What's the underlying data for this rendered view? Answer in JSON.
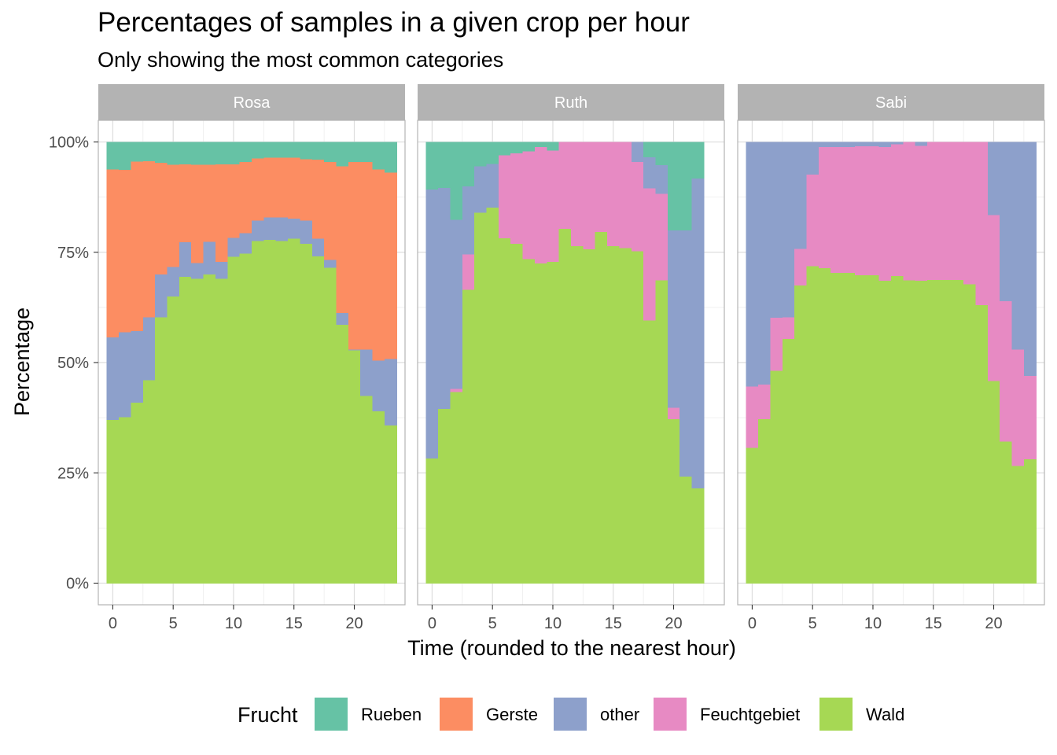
{
  "chart_data": {
    "type": "bar",
    "stacked": true,
    "title": "Percentages of samples in a given crop per hour",
    "subtitle": "Only showing the most common categories",
    "xlabel": "Time (rounded to the nearest hour)",
    "ylabel": "Percentage",
    "x_ticks": [
      0,
      5,
      10,
      15,
      20
    ],
    "y_ticks": [
      0,
      25,
      50,
      75,
      100
    ],
    "y_tick_labels": [
      "0%",
      "25%",
      "50%",
      "75%",
      "100%"
    ],
    "ylim": [
      0,
      100
    ],
    "grid": true,
    "legend": {
      "title": "Frucht",
      "position": "bottom",
      "entries": [
        {
          "name": "Rueben",
          "color": "#66c2a5"
        },
        {
          "name": "Gerste",
          "color": "#fc8d62"
        },
        {
          "name": "other",
          "color": "#8da0cb"
        },
        {
          "name": "Feuchtgebiet",
          "color": "#e78ac3"
        },
        {
          "name": "Wald",
          "color": "#a6d854"
        }
      ]
    },
    "stack_order_bottom_to_top": [
      "Wald",
      "Feuchtgebiet",
      "other",
      "Gerste",
      "Rueben"
    ],
    "hours": [
      0,
      1,
      2,
      3,
      4,
      5,
      6,
      7,
      8,
      9,
      10,
      11,
      12,
      13,
      14,
      15,
      16,
      17,
      18,
      19,
      20,
      21,
      22,
      23
    ],
    "panels": [
      {
        "name": "Rosa",
        "series": {
          "Wald": [
            37,
            37.7,
            41,
            46,
            60.3,
            65,
            69.5,
            69,
            70,
            69,
            74,
            74.7,
            77.6,
            77.9,
            77.6,
            78.1,
            77,
            74.1,
            71.5,
            58.6,
            52.8,
            42.5,
            39,
            35.8
          ],
          "Feuchtgebiet": [
            0,
            0,
            0,
            0,
            0,
            0,
            0,
            0,
            0,
            0,
            0,
            0,
            0,
            0,
            0,
            0,
            0,
            0,
            0,
            0,
            0,
            0,
            0,
            0
          ],
          "other": [
            18.8,
            19.2,
            16.2,
            14.3,
            9.7,
            6.7,
            7.8,
            3.6,
            7.4,
            3.9,
            4.3,
            4.7,
            4.6,
            5,
            5.3,
            4.6,
            5.2,
            4,
            1.8,
            2.7,
            0.2,
            10.5,
            11.5,
            15.1
          ],
          "Gerste": [
            38,
            36.8,
            38.4,
            35.4,
            25.3,
            23.2,
            17.7,
            22.3,
            17.5,
            22.1,
            16.7,
            16.1,
            14.1,
            13.6,
            13.6,
            13.8,
            13.9,
            17.9,
            22.2,
            33.2,
            42.5,
            42.5,
            43.3,
            42.2
          ],
          "Rueben": [
            6.2,
            6.3,
            4.4,
            4.3,
            4.7,
            5.1,
            5,
            5.1,
            5.1,
            5,
            5,
            4.5,
            3.7,
            3.5,
            3.5,
            3.5,
            3.9,
            4,
            4.5,
            5.5,
            4.5,
            4.5,
            6.2,
            6.9
          ]
        }
      },
      {
        "name": "Ruth",
        "series": {
          "Wald": [
            28.3,
            39.5,
            43.4,
            66.5,
            84,
            85.2,
            78.2,
            77,
            73.5,
            72.5,
            72.9,
            80.4,
            76.4,
            75.7,
            79.6,
            76.4,
            76,
            75.3,
            59.6,
            68.7,
            37.2,
            24.2,
            21.5,
            0
          ],
          "Feuchtgebiet": [
            0,
            0,
            0.7,
            8.1,
            0,
            0,
            18.8,
            20.5,
            24.4,
            26.4,
            25.2,
            19.6,
            23.6,
            24.3,
            20.4,
            23.6,
            24,
            20.2,
            29.9,
            19.6,
            2.6,
            0,
            0,
            0
          ],
          "other": [
            61,
            50.1,
            38.3,
            15.4,
            10.5,
            9.9,
            0,
            0,
            0,
            0,
            0,
            0,
            0,
            0,
            0,
            0,
            0,
            4.5,
            7.1,
            6.5,
            40.2,
            55.8,
            70.3,
            0
          ],
          "Gerste": [
            0,
            0,
            0,
            0,
            0,
            0,
            0,
            0,
            0,
            0,
            0,
            0,
            0,
            0,
            0,
            0,
            0,
            0,
            0,
            0,
            0,
            0,
            0,
            0
          ],
          "Rueben": [
            10.7,
            10.4,
            17.6,
            10,
            5.5,
            4.9,
            3,
            2.5,
            2.1,
            1.1,
            1.9,
            0,
            0,
            0,
            0,
            0,
            0,
            0,
            3.4,
            5.2,
            20,
            20,
            8.2,
            0
          ]
        }
      },
      {
        "name": "Sabi",
        "series": {
          "Wald": [
            30.7,
            37.2,
            48.2,
            55.4,
            67.5,
            71.9,
            71.4,
            70.4,
            70.4,
            69.8,
            69.8,
            68.6,
            69.7,
            68.7,
            68.6,
            68.8,
            68.8,
            68.8,
            67.8,
            63.1,
            45.9,
            32.1,
            26.6,
            28.1
          ],
          "Feuchtgebiet": [
            13.9,
            7.9,
            12,
            4.9,
            8.3,
            20.8,
            27.5,
            28.5,
            28.5,
            29.3,
            29.3,
            30.3,
            29.8,
            31.3,
            30.6,
            31.2,
            31.2,
            31.2,
            32.2,
            36.9,
            37.6,
            31.9,
            26.4,
            18.9
          ],
          "other": [
            55.4,
            54.9,
            39.8,
            39.7,
            24.2,
            7.3,
            1.1,
            1.1,
            1.1,
            0.9,
            0.9,
            1.1,
            0.5,
            0,
            0.8,
            0,
            0,
            0,
            0,
            0,
            16.5,
            36,
            47,
            53
          ],
          "Gerste": [
            0,
            0,
            0,
            0,
            0,
            0,
            0,
            0,
            0,
            0,
            0,
            0,
            0,
            0,
            0,
            0,
            0,
            0,
            0,
            0,
            0,
            0,
            0,
            0
          ],
          "Rueben": [
            0,
            0,
            0,
            0,
            0,
            0,
            0,
            0,
            0,
            0,
            0,
            0,
            0,
            0,
            0,
            0,
            0,
            0,
            0,
            0,
            0,
            0,
            0,
            0
          ]
        }
      }
    ]
  }
}
